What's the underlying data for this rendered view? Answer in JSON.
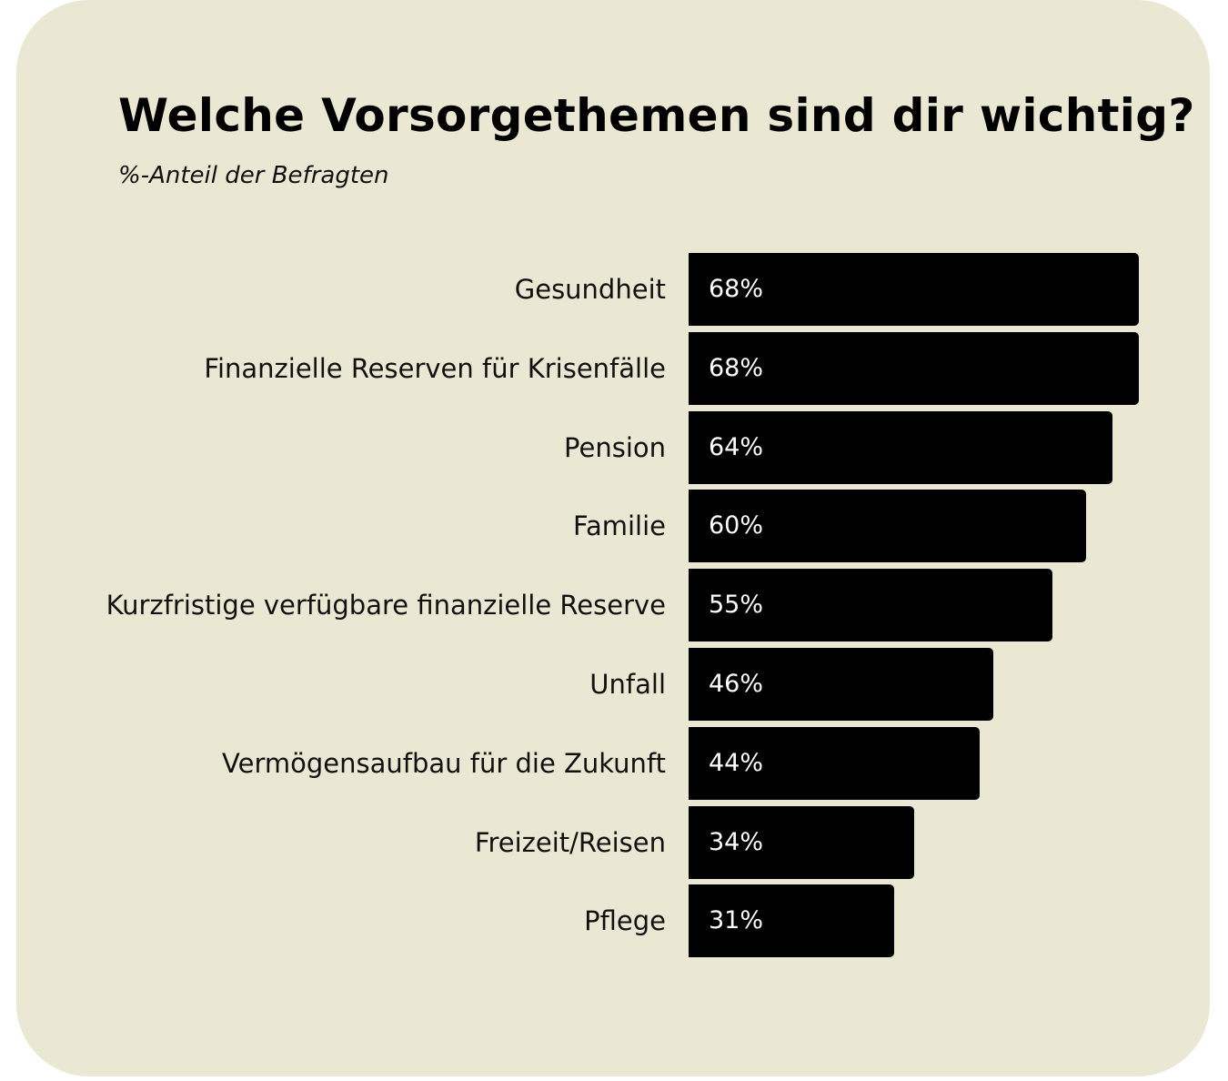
{
  "chart": {
    "title": "Welche Vorsorgethemen sind dir wichtig?",
    "subtitle": "%-Anteil der Befragten",
    "rows": [
      {
        "label": "Gesundheit",
        "value": 68,
        "value_label": "68%"
      },
      {
        "label": "Finanzielle Reserven für Krisenfälle",
        "value": 68,
        "value_label": "68%"
      },
      {
        "label": "Pension",
        "value": 64,
        "value_label": "64%"
      },
      {
        "label": "Familie",
        "value": 60,
        "value_label": "60%"
      },
      {
        "label": "Kurzfristige verfügbare finanzielle Reserve",
        "value": 55,
        "value_label": "55%"
      },
      {
        "label": "Unfall",
        "value": 46,
        "value_label": "46%"
      },
      {
        "label": "Vermögensaufbau für die Zukunft",
        "value": 44,
        "value_label": "44%"
      },
      {
        "label": "Freizeit/Reisen",
        "value": 34,
        "value_label": "34%"
      },
      {
        "label": "Pflege",
        "value": 31,
        "value_label": "31%"
      }
    ]
  },
  "colors": {
    "background": "#EAE7D3",
    "bar": "#000000",
    "bar_text": "#FFFFFF",
    "text": "#111111"
  },
  "chart_data": {
    "type": "bar",
    "orientation": "horizontal",
    "title": "Welche Vorsorgethemen sind dir wichtig?",
    "subtitle": "%-Anteil der Befragten",
    "categories": [
      "Gesundheit",
      "Finanzielle Reserven für Krisenfälle",
      "Pension",
      "Familie",
      "Kurzfristige verfügbare finanzielle Reserve",
      "Unfall",
      "Vermögensaufbau für die Zukunft",
      "Freizeit/Reisen",
      "Pflege"
    ],
    "values": [
      68,
      68,
      64,
      60,
      55,
      46,
      44,
      34,
      31
    ],
    "xlabel": "",
    "ylabel": "",
    "unit": "%",
    "data_labels": true,
    "grid": false,
    "legend": null
  }
}
